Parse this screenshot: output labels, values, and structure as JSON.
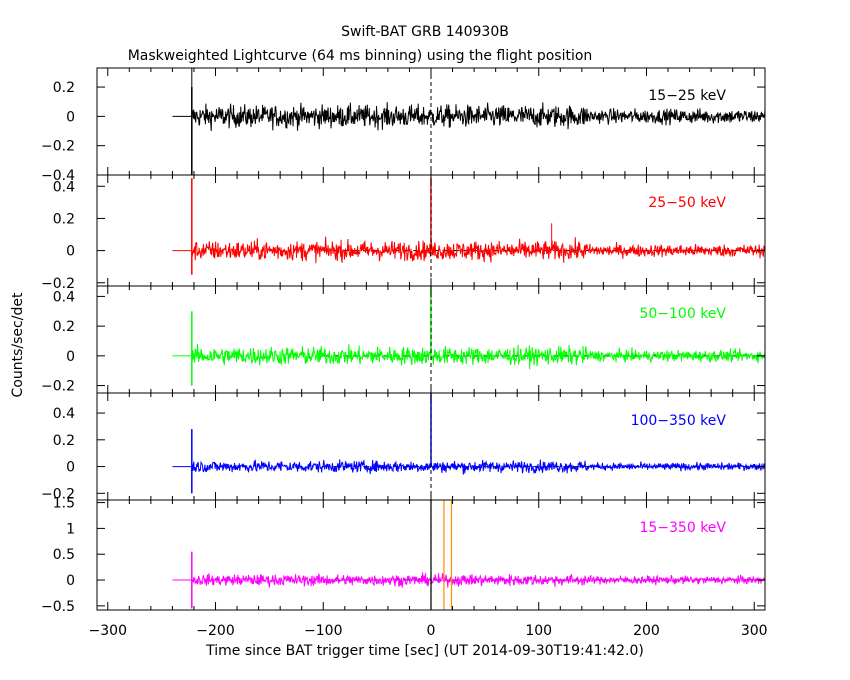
{
  "title": "Swift-BAT GRB 140930B",
  "subtitle": "Maskweighted Lightcurve (64 ms binning) using the flight position",
  "chart_data": {
    "type": "line",
    "xlabel": "Time since BAT trigger time [sec] (UT 2014-09-30T19:41:42.0)",
    "ylabel": "Counts/sec/det",
    "xlim": [
      -310,
      310
    ],
    "xticks": [
      -300,
      -200,
      -100,
      0,
      100,
      200,
      300
    ],
    "grid": false,
    "start_time": -222,
    "panels": [
      {
        "label": "15-25 keV",
        "color": "#000000",
        "ylim": [
          -0.4,
          0.33
        ],
        "yticks": [
          -0.4,
          -0.2,
          0,
          0.2
        ],
        "yticklabels": [
          "−0.4",
          "−0.2",
          "0",
          "0.2"
        ],
        "noise": 0.07,
        "noise_late": 0.045,
        "spike_low": -0.4,
        "spike_high": 0.2
      },
      {
        "label": "25-50 keV",
        "color": "#ff0000",
        "ylim": [
          -0.22,
          0.47
        ],
        "yticks": [
          -0.2,
          0,
          0.2,
          0.4
        ],
        "yticklabels": [
          "−0.2",
          "0",
          "0.2",
          "0.4"
        ],
        "noise": 0.055,
        "noise_late": 0.035,
        "spike_low": -0.15,
        "spike_high": 0.45,
        "peak": 0.45,
        "peak2": 0.17
      },
      {
        "label": "50-100 keV",
        "color": "#00ff00",
        "ylim": [
          -0.25,
          0.47
        ],
        "yticks": [
          -0.2,
          0,
          0.2,
          0.4
        ],
        "yticklabels": [
          "−0.2",
          "0",
          "0.2",
          "0.4"
        ],
        "noise": 0.055,
        "noise_late": 0.035,
        "spike_low": -0.2,
        "spike_high": 0.3,
        "peak": 0.47
      },
      {
        "label": "100-350 keV",
        "color": "#0000ff",
        "ylim": [
          -0.25,
          0.55
        ],
        "yticks": [
          -0.2,
          0,
          0.2,
          0.4
        ],
        "yticklabels": [
          "−0.2",
          "0",
          "0.2",
          "0.4"
        ],
        "noise": 0.04,
        "noise_late": 0.025,
        "spike_low": -0.2,
        "spike_high": 0.28,
        "peak": 0.55
      },
      {
        "label": "15-350 keV",
        "color": "#ff00ff",
        "ylim": [
          -0.58,
          1.55
        ],
        "yticks": [
          -0.5,
          0,
          0.5,
          1,
          1.5
        ],
        "yticklabels": [
          "−0.5",
          "0",
          "0.5",
          "1",
          "1.5"
        ],
        "noise": 0.1,
        "noise_late": 0.07,
        "spike_low": -0.55,
        "spike_high": 0.55,
        "vlines": [
          {
            "x": 0,
            "color": "#00ff00"
          },
          {
            "x": 0,
            "color": "#000000"
          },
          {
            "x": 12,
            "color": "#ff8c00"
          },
          {
            "x": 19,
            "color": "#ff8c00"
          }
        ]
      }
    ]
  }
}
